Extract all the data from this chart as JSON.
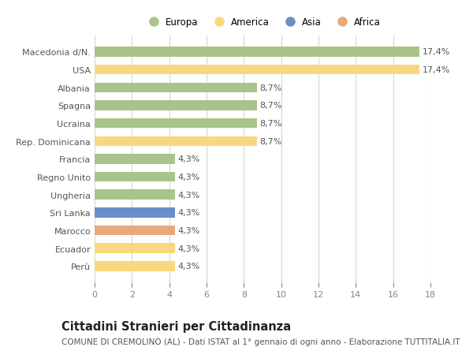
{
  "categories": [
    "Perù",
    "Ecuador",
    "Marocco",
    "Sri Lanka",
    "Ungheria",
    "Regno Unito",
    "Francia",
    "Rep. Dominicana",
    "Ucraina",
    "Spagna",
    "Albania",
    "USA",
    "Macedonia d/N."
  ],
  "values": [
    4.3,
    4.3,
    4.3,
    4.3,
    4.3,
    4.3,
    4.3,
    8.7,
    8.7,
    8.7,
    8.7,
    17.4,
    17.4
  ],
  "bar_colors": [
    "#f9d77e",
    "#f9d77e",
    "#e8a87c",
    "#6b8ec7",
    "#a8c48a",
    "#a8c48a",
    "#a8c48a",
    "#f9d77e",
    "#a8c48a",
    "#a8c48a",
    "#a8c48a",
    "#f9d77e",
    "#a8c48a"
  ],
  "labels": [
    "4,3%",
    "4,3%",
    "4,3%",
    "4,3%",
    "4,3%",
    "4,3%",
    "4,3%",
    "8,7%",
    "8,7%",
    "8,7%",
    "8,7%",
    "17,4%",
    "17,4%"
  ],
  "legend": [
    {
      "label": "Europa",
      "color": "#a8c48a"
    },
    {
      "label": "America",
      "color": "#f9d77e"
    },
    {
      "label": "Asia",
      "color": "#6b8ec7"
    },
    {
      "label": "Africa",
      "color": "#e8a87c"
    }
  ],
  "xlim": [
    0,
    18
  ],
  "xticks": [
    0,
    2,
    4,
    6,
    8,
    10,
    12,
    14,
    16,
    18
  ],
  "title": "Cittadini Stranieri per Cittadinanza",
  "subtitle": "COMUNE DI CREMOLINO (AL) - Dati ISTAT al 1° gennaio di ogni anno - Elaborazione TUTTITALIA.IT",
  "background_color": "#ffffff",
  "grid_color": "#d5d5d5",
  "bar_height": 0.55,
  "label_fontsize": 8,
  "ytick_fontsize": 8,
  "xtick_fontsize": 8,
  "title_fontsize": 10.5,
  "subtitle_fontsize": 7.5,
  "label_color": "#555555",
  "ytick_color": "#555555",
  "xtick_color": "#888888"
}
